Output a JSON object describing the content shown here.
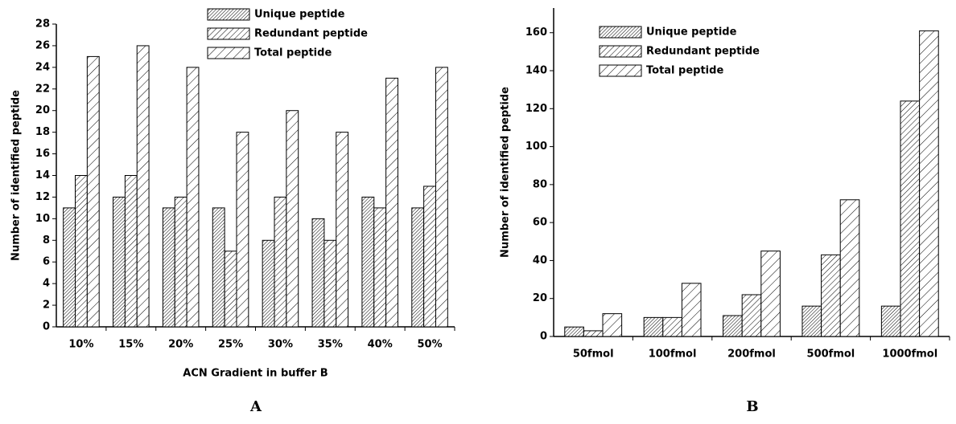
{
  "chart_data": [
    {
      "type": "bar",
      "panel": "A",
      "xlabel": "ACN Gradient in buffer B",
      "ylabel": "Number of identified peptide",
      "categories": [
        "10%",
        "15%",
        "20%",
        "25%",
        "30%",
        "35%",
        "40%",
        "50%"
      ],
      "series": [
        {
          "name": "Unique peptide",
          "color": "#000000",
          "values": [
            11,
            12,
            11,
            11,
            8,
            10,
            12,
            11
          ]
        },
        {
          "name": "Redundant peptide",
          "color": "#000000",
          "values": [
            14,
            14,
            12,
            7,
            12,
            8,
            11,
            13
          ]
        },
        {
          "name": "Total peptide",
          "color": "#000000",
          "values": [
            25,
            26,
            24,
            18,
            20,
            18,
            23,
            24
          ]
        }
      ],
      "ylim": [
        0,
        28
      ],
      "yticks": [
        0,
        2,
        4,
        6,
        8,
        10,
        12,
        14,
        16,
        18,
        20,
        22,
        24,
        26,
        28
      ],
      "legend": "top"
    },
    {
      "type": "bar",
      "panel": "B",
      "ylabel": "Number of identified peptide",
      "categories": [
        "50fmol",
        "100fmol",
        "200fmol",
        "500fmol",
        "1000fmol"
      ],
      "series": [
        {
          "name": "Unique peptide",
          "color": "#000000",
          "values": [
            5,
            10,
            11,
            16,
            16
          ]
        },
        {
          "name": "Redundant peptide",
          "color": "#000000",
          "values": [
            3,
            10,
            22,
            43,
            124
          ]
        },
        {
          "name": "Total peptide",
          "color": "#000000",
          "values": [
            12,
            28,
            45,
            72,
            161
          ]
        }
      ],
      "ylim": [
        0,
        173
      ],
      "yticks": [
        0,
        20,
        40,
        60,
        80,
        100,
        120,
        140,
        160
      ],
      "legend": "top left"
    }
  ]
}
